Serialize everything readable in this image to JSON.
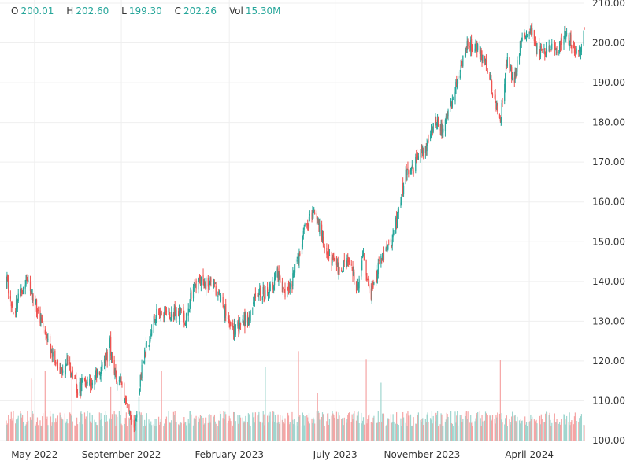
{
  "legend": {
    "o_label": "O",
    "o_value": "200.01",
    "h_label": "H",
    "h_value": "202.60",
    "l_label": "L",
    "l_value": "199.30",
    "c_label": "C",
    "c_value": "202.26",
    "vol_label": "Vol",
    "vol_value": "15.30M"
  },
  "colors": {
    "up": "#26a69a",
    "down": "#ef5350",
    "up_volume": "#9fd6cf",
    "down_volume": "#f5a5a5",
    "grid": "#efefef",
    "text": "#333333"
  },
  "chart_data": {
    "type": "candlestick",
    "title": "",
    "xlabel": "",
    "ylabel": "",
    "ylim": [
      100,
      210
    ],
    "y_ticks": [
      "100.00",
      "110.00",
      "120.00",
      "130.00",
      "140.00",
      "150.00",
      "160.00",
      "170.00",
      "180.00",
      "190.00",
      "200.00",
      "210.00"
    ],
    "x_ticks": [
      "May 2022",
      "September 2022",
      "February 2023",
      "July 2023",
      "November 2023",
      "April 2024"
    ],
    "grid": true,
    "volume_histogram": true,
    "close_series": {
      "x": [
        "2022-03-23",
        "2022-04-01",
        "2022-04-20",
        "2022-05-10",
        "2022-05-25",
        "2022-06-10",
        "2022-06-16",
        "2022-07-01",
        "2022-07-20",
        "2022-08-10",
        "2022-08-16",
        "2022-08-20",
        "2022-09-01",
        "2022-09-10",
        "2022-09-20",
        "2022-10-01",
        "2022-10-20",
        "2022-11-10",
        "2022-11-20",
        "2022-12-01",
        "2022-12-10",
        "2022-12-20",
        "2023-01-05",
        "2023-01-20",
        "2023-02-01",
        "2023-02-10",
        "2023-02-20",
        "2023-03-01",
        "2023-03-10",
        "2023-03-20",
        "2023-04-01",
        "2023-04-10",
        "2023-04-20",
        "2023-05-01",
        "2023-05-20",
        "2023-06-01",
        "2023-06-20",
        "2023-07-05",
        "2023-07-20",
        "2023-08-01",
        "2023-08-10",
        "2023-08-20",
        "2023-09-01",
        "2023-09-20",
        "2023-10-01",
        "2023-10-10",
        "2023-10-20",
        "2023-10-28",
        "2023-11-05",
        "2023-11-20",
        "2023-12-01",
        "2023-12-20",
        "2024-01-05",
        "2024-01-20",
        "2024-02-01",
        "2024-02-20",
        "2024-03-01",
        "2024-03-10",
        "2024-03-20",
        "2024-04-01",
        "2024-04-10",
        "2024-04-20",
        "2024-05-01",
        "2024-05-10",
        "2024-05-20",
        "2024-06-01",
        "2024-06-10",
        "2024-06-17"
      ],
      "y": [
        140,
        132,
        141,
        130,
        122,
        117,
        120,
        113,
        115,
        120,
        124,
        117,
        115,
        108,
        103,
        120,
        132,
        132,
        133,
        130,
        137,
        140,
        140,
        136,
        129,
        128,
        130,
        130,
        137,
        137,
        138,
        142,
        137,
        140,
        154,
        158,
        147,
        143,
        145,
        138,
        147,
        136,
        145,
        150,
        160,
        168,
        168,
        173,
        172,
        180,
        178,
        190,
        200,
        198,
        194,
        180,
        197,
        190,
        200,
        204,
        200,
        197,
        200,
        198,
        202,
        200,
        197,
        202
      ]
    }
  }
}
